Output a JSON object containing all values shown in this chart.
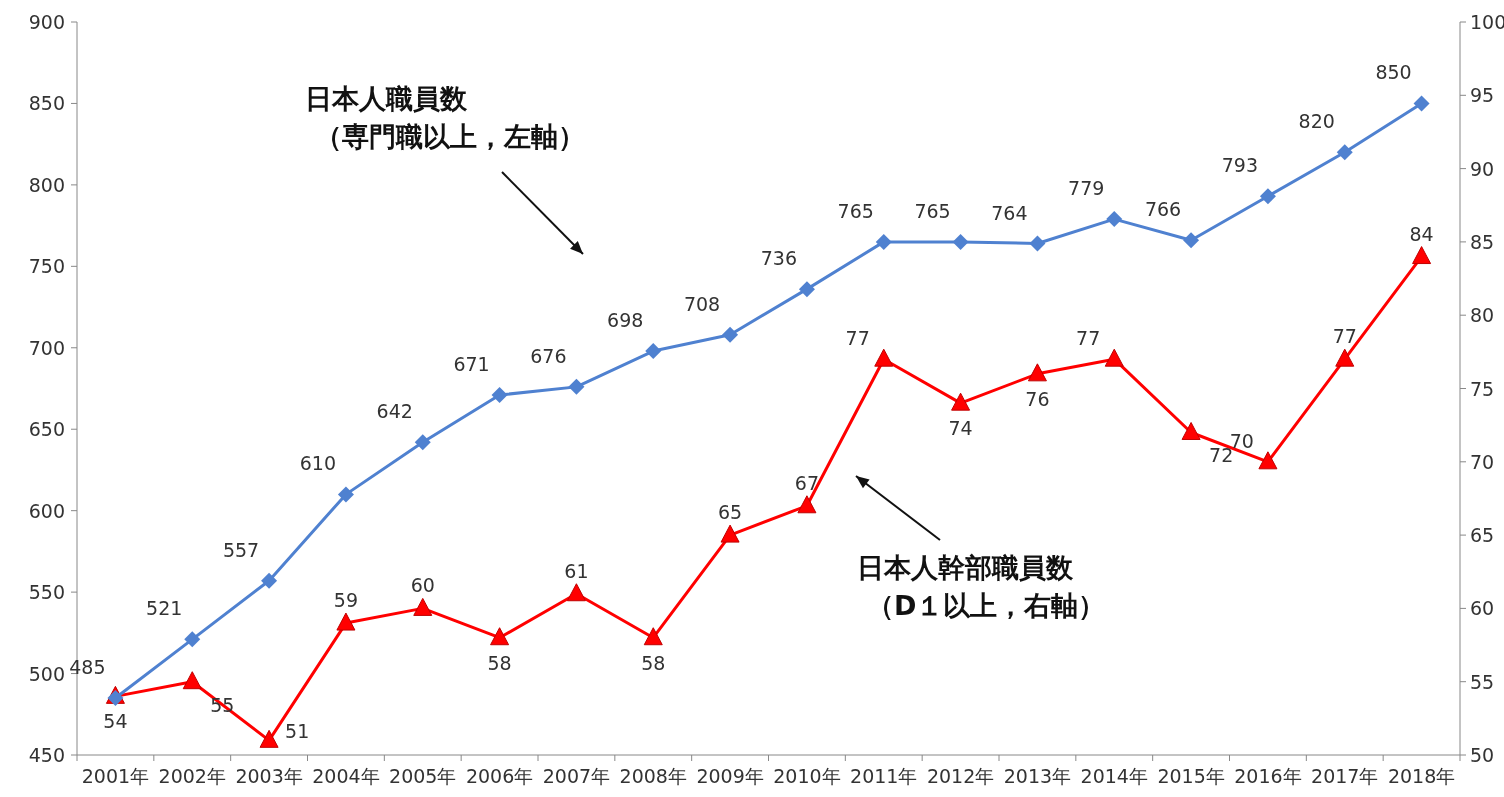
{
  "chart_data": {
    "type": "line",
    "categories": [
      "2001年",
      "2002年",
      "2003年",
      "2004年",
      "2005年",
      "2006年",
      "2007年",
      "2008年",
      "2009年",
      "2010年",
      "2011年",
      "2012年",
      "2013年",
      "2014年",
      "2015年",
      "2016年",
      "2017年",
      "2018年"
    ],
    "series": [
      {
        "color": "#4f81d0",
        "marker": "diamond",
        "values": [
          485,
          521,
          557,
          610,
          642,
          671,
          676,
          698,
          708,
          736,
          765,
          765,
          764,
          779,
          766,
          793,
          820,
          850
        ]
      },
      {
        "color": "#ff0000",
        "marker": "triangle",
        "axis": "y2",
        "values": [
          54,
          55,
          51,
          59,
          60,
          58,
          61,
          58,
          65,
          67,
          77,
          74,
          76,
          77,
          72,
          70,
          77,
          84
        ]
      }
    ],
    "annotations": [
      "日本人職員数（専門職以上，左軸）",
      "日本人幹部職員数（D１以上，右軸）"
    ],
    "ylim": [
      450,
      900
    ],
    "yticks": [
      450,
      500,
      550,
      600,
      650,
      700,
      750,
      800,
      850,
      900
    ],
    "y2lim": [
      50,
      100
    ],
    "y2ticks": [
      50,
      55,
      60,
      65,
      70,
      75,
      80,
      85,
      90,
      95,
      100
    ],
    "data_labels": true,
    "grid": false
  }
}
